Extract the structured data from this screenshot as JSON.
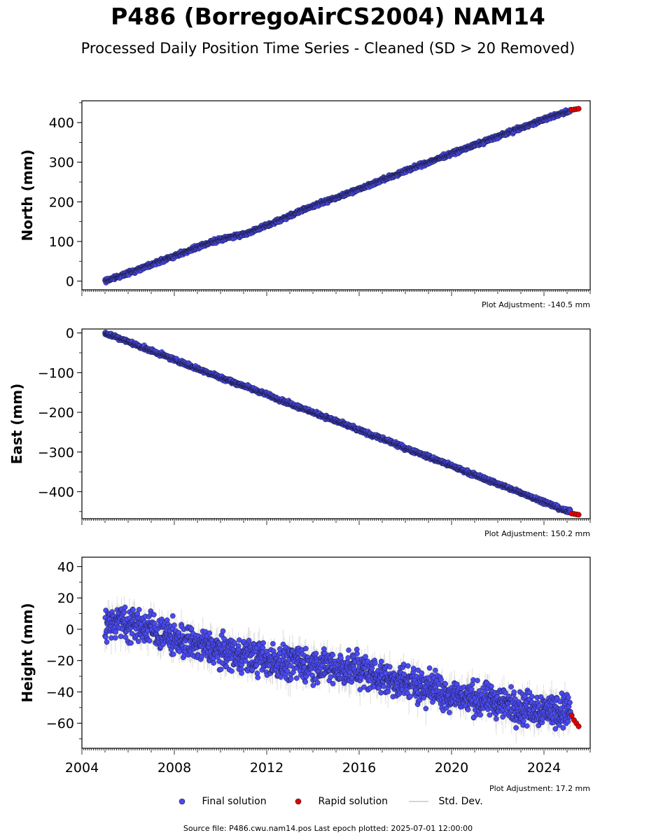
{
  "title": "P486 (BorregoAirCS2004) NAM14",
  "subtitle": "Processed Daily Position Time Series - Cleaned (SD > 20 Removed)",
  "legend": {
    "final": "Final solution",
    "rapid": "Rapid solution",
    "std": "Std. Dev."
  },
  "colors": {
    "final": "#4a4af0",
    "rapid": "#e00000",
    "std": "#c8c8c8"
  },
  "source_text": "Source file: P486.cwu.nam14.pos  Last epoch plotted: 2025-07-01 12:00:00",
  "chart_data": [
    {
      "type": "scatter",
      "ylabel": "North (mm)",
      "adjustment": "Plot Adjustment: -140.5 mm",
      "xlim": [
        2004.0,
        2026.0
      ],
      "ylim": [
        -22,
        455
      ],
      "yticks": [
        0,
        100,
        200,
        300,
        400
      ],
      "final_series": {
        "x": [
          2005.0,
          2006.0,
          2007.0,
          2008.0,
          2009.0,
          2010.0,
          2011.0,
          2012.0,
          2013.0,
          2014.0,
          2015.0,
          2016.0,
          2017.0,
          2018.0,
          2019.0,
          2020.0,
          2021.0,
          2022.0,
          2023.0,
          2024.0,
          2025.0
        ],
        "y": [
          0,
          20,
          42,
          63,
          85,
          106,
          118,
          140,
          165,
          190,
          210,
          233,
          255,
          278,
          300,
          322,
          343,
          365,
          386,
          408,
          428
        ]
      },
      "rapid_series": {
        "x": [
          2025.2,
          2025.3,
          2025.4,
          2025.5
        ],
        "y": [
          432,
          433,
          434,
          435
        ]
      }
    },
    {
      "type": "scatter",
      "ylabel": "East (mm)",
      "adjustment": "Plot Adjustment: 150.2 mm",
      "xlim": [
        2004.0,
        2026.0
      ],
      "ylim": [
        -468,
        10
      ],
      "yticks": [
        0,
        -100,
        -200,
        -300,
        -400
      ],
      "final_series": {
        "x": [
          2005.0,
          2006.0,
          2007.0,
          2008.0,
          2009.0,
          2010.0,
          2011.0,
          2012.0,
          2013.0,
          2014.0,
          2015.0,
          2016.0,
          2017.0,
          2018.0,
          2019.0,
          2020.0,
          2021.0,
          2022.0,
          2023.0,
          2024.0,
          2025.0
        ],
        "y": [
          0,
          -22,
          -45,
          -67,
          -90,
          -112,
          -133,
          -155,
          -178,
          -200,
          -222,
          -245,
          -267,
          -290,
          -312,
          -335,
          -358,
          -380,
          -403,
          -425,
          -450
        ]
      },
      "rapid_series": {
        "x": [
          2025.2,
          2025.3,
          2025.4,
          2025.5
        ],
        "y": [
          -455,
          -456,
          -457,
          -458
        ]
      }
    },
    {
      "type": "scatter",
      "ylabel": "Height (mm)",
      "adjustment": "Plot Adjustment: 17.2 mm",
      "xlim": [
        2004.0,
        2026.0
      ],
      "ylim": [
        -76,
        46
      ],
      "yticks": [
        40,
        20,
        0,
        -20,
        -40,
        -60
      ],
      "xticks": [
        2004,
        2008,
        2012,
        2016,
        2020,
        2024
      ],
      "final_series": {
        "x": [
          2005.0,
          2005.5,
          2006.0,
          2006.5,
          2007.0,
          2008.0,
          2009.0,
          2010.0,
          2011.0,
          2012.0,
          2013.0,
          2014.0,
          2015.0,
          2016.0,
          2017.0,
          2018.0,
          2019.0,
          2020.0,
          2021.0,
          2022.0,
          2023.0,
          2024.0,
          2025.0
        ],
        "y": [
          2,
          6,
          4,
          2,
          0,
          -6,
          -10,
          -14,
          -16,
          -20,
          -21,
          -23,
          -25,
          -26,
          -31,
          -34,
          -37,
          -42,
          -45,
          -46,
          -50,
          -51,
          -52
        ]
      },
      "rapid_series": {
        "x": [
          2025.2,
          2025.3,
          2025.4,
          2025.5
        ],
        "y": [
          -55,
          -58,
          -60,
          -62
        ]
      }
    }
  ]
}
